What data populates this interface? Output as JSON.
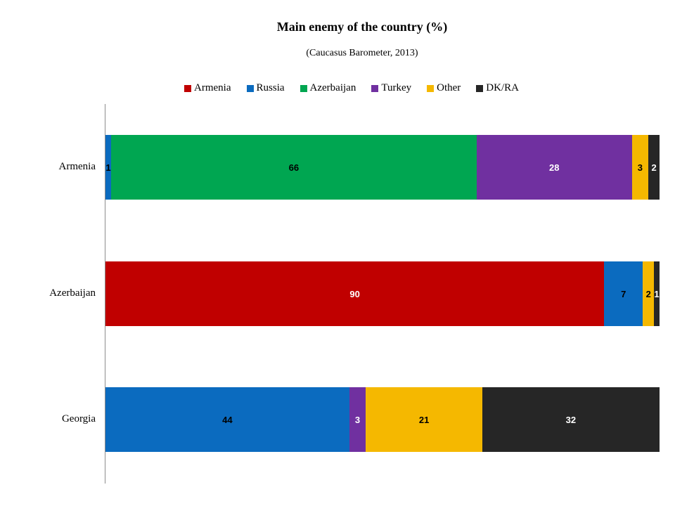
{
  "chart_data": {
    "type": "bar",
    "orientation": "horizontal",
    "stacked": true,
    "title": "Main enemy of the country (%)",
    "subtitle": "(Caucasus Barometer, 2013)",
    "categories": [
      "Armenia",
      "Azerbaijan",
      "Georgia"
    ],
    "series": [
      {
        "name": "Armenia",
        "color": "#c00000",
        "values": [
          0,
          90,
          0
        ]
      },
      {
        "name": "Russia",
        "color": "#0b6bbf",
        "values": [
          1,
          7,
          44
        ]
      },
      {
        "name": "Azerbaijan",
        "color": "#00a651",
        "values": [
          66,
          0,
          0
        ]
      },
      {
        "name": "Turkey",
        "color": "#7030a0",
        "values": [
          28,
          0,
          3
        ]
      },
      {
        "name": "Other",
        "color": "#f5b800",
        "values": [
          3,
          2,
          21
        ]
      },
      {
        "name": "DK/RA",
        "color": "#262626",
        "values": [
          2,
          1,
          32
        ]
      }
    ],
    "xlim": [
      0,
      100
    ],
    "legend_position": "top",
    "grid": false
  }
}
